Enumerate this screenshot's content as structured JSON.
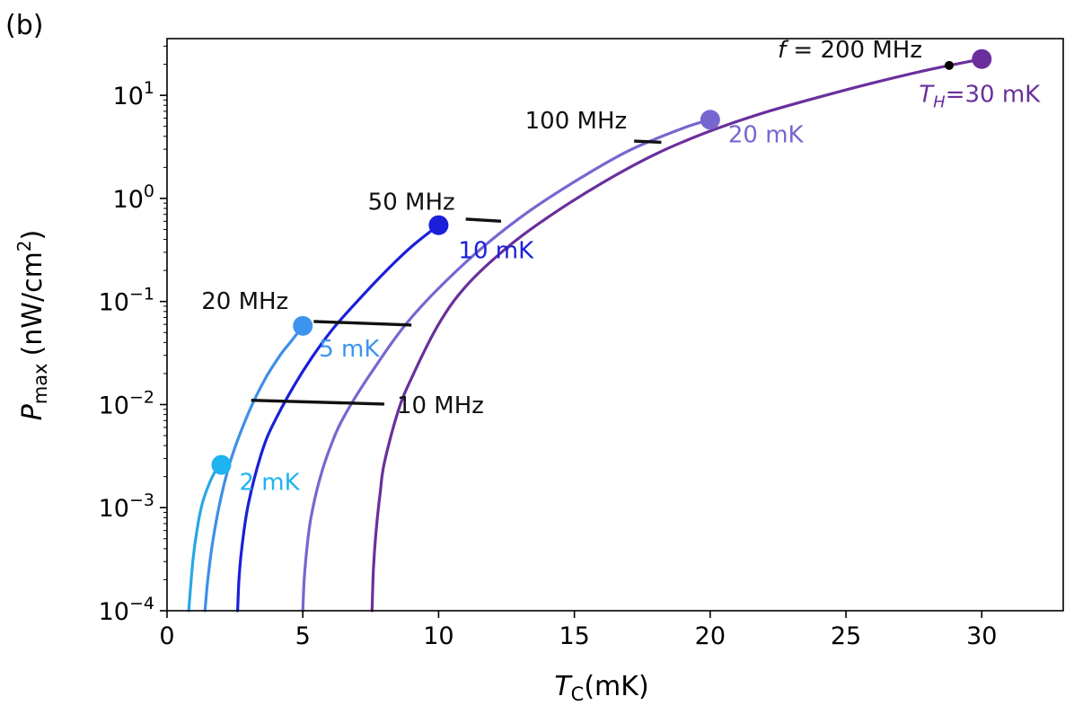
{
  "chart_data": {
    "type": "line",
    "panel_label": "(b)",
    "xlabel": {
      "symbol": "T",
      "subscript": "C",
      "unit": "(mK)"
    },
    "ylabel": {
      "symbol": "P",
      "subscript": "max",
      "unit": "(nW/cm",
      "unit_sup": "2",
      "unit_close": ")"
    },
    "xlim": [
      0,
      33
    ],
    "ylim_log10": [
      -4,
      1.55
    ],
    "yscale": "log",
    "x_ticks": [
      {
        "value": 0,
        "label": "0"
      },
      {
        "value": 5,
        "label": "5"
      },
      {
        "value": 10,
        "label": "10"
      },
      {
        "value": 15,
        "label": "15"
      },
      {
        "value": 20,
        "label": "20"
      },
      {
        "value": 25,
        "label": "25"
      },
      {
        "value": 30,
        "label": "30"
      }
    ],
    "y_ticks": [
      {
        "exp": 1,
        "base": "10",
        "sup": "1"
      },
      {
        "exp": 0,
        "base": "10",
        "sup": "0"
      },
      {
        "exp": -1,
        "base": "10",
        "sup": "−1"
      },
      {
        "exp": -2,
        "base": "10",
        "sup": "−2"
      },
      {
        "exp": -3,
        "base": "10",
        "sup": "−3"
      },
      {
        "exp": -4,
        "base": "10",
        "sup": "−4"
      }
    ],
    "series": [
      {
        "name": "2 mK",
        "T_H": 2,
        "color": "#2aa6e6",
        "x": [
          0.8,
          0.95,
          1.1,
          1.3,
          1.55,
          1.8,
          2.0
        ],
        "y": [
          0.0001,
          0.0003,
          0.0006,
          0.0011,
          0.0017,
          0.0023,
          0.0026
        ]
      },
      {
        "name": "5 mK",
        "T_H": 5,
        "color": "#3d8fe6",
        "x": [
          1.4,
          1.5,
          1.7,
          2.0,
          2.4,
          3.0,
          3.6,
          4.2,
          4.6,
          5.0
        ],
        "y": [
          0.0001,
          0.0002,
          0.0005,
          0.0013,
          0.0032,
          0.0083,
          0.0175,
          0.031,
          0.042,
          0.058
        ]
      },
      {
        "name": "10 mK",
        "T_H": 10,
        "color": "#1a1fd9",
        "x": [
          2.6,
          2.65,
          2.75,
          3.0,
          3.5,
          4.0,
          5.0,
          6.0,
          7.0,
          8.0,
          9.0,
          10.0
        ],
        "y": [
          0.0001,
          0.0002,
          0.0004,
          0.0011,
          0.0035,
          0.0072,
          0.021,
          0.05,
          0.1,
          0.19,
          0.34,
          0.55
        ]
      },
      {
        "name": "20 mK",
        "T_H": 20,
        "color": "#7667d0",
        "x": [
          5.0,
          5.05,
          5.15,
          5.3,
          5.6,
          6.0,
          6.5,
          7.5,
          9.0,
          11.0,
          13.0,
          15.0,
          17.0,
          19.0,
          20.0
        ],
        "y": [
          0.0001,
          0.0002,
          0.0004,
          0.0008,
          0.0018,
          0.0038,
          0.0075,
          0.02,
          0.07,
          0.24,
          0.65,
          1.45,
          2.9,
          4.8,
          5.8
        ]
      },
      {
        "name": "30 mK",
        "T_H": 30,
        "color": "#6a2f9c",
        "x": [
          7.55,
          7.6,
          7.7,
          7.85,
          8.0,
          8.5,
          9.0,
          10.0,
          11.0,
          12.5,
          14.0,
          16.0,
          18.0,
          20.0,
          22.0,
          24.0,
          26.0,
          28.0,
          30.0
        ],
        "y": [
          0.0001,
          0.00025,
          0.0006,
          0.0014,
          0.0027,
          0.0085,
          0.018,
          0.06,
          0.14,
          0.33,
          0.65,
          1.4,
          2.7,
          4.5,
          6.8,
          9.6,
          13.2,
          17.6,
          22.5
        ]
      }
    ],
    "endpoint_markers": [
      {
        "label": "2 mK",
        "x": 2,
        "y": 0.0026,
        "color": "#1fb3f0",
        "label_color": "#1fb3f0"
      },
      {
        "label": "5 mK",
        "x": 5,
        "y": 0.058,
        "color": "#3d94ee",
        "label_color": "#3d94ee"
      },
      {
        "label": "10 mK",
        "x": 10,
        "y": 0.55,
        "color": "#1a1fd9",
        "label_color": "#1a1fd9"
      },
      {
        "label": "20 mK",
        "x": 20,
        "y": 5.8,
        "color": "#7667d0",
        "label_color": "#7667d0"
      },
      {
        "label_prefix_symbol": "T",
        "label_prefix_sub": "H",
        "label": "=30 mK",
        "x": 30,
        "y": 22.5,
        "color": "#6a2f9c",
        "label_color": "#6a2f9c"
      }
    ],
    "frequency_lines": [
      {
        "label": "10 MHz",
        "x1": 3.1,
        "y1": 0.011,
        "x2": 8.0,
        "y2": 0.0101
      },
      {
        "label": "20 MHz",
        "x1": 5.4,
        "y1": 0.064,
        "x2": 9.0,
        "y2": 0.059
      },
      {
        "label": "50 MHz",
        "x1": 11.0,
        "y1": 0.63,
        "x2": 12.3,
        "y2": 0.6
      },
      {
        "label": "100 MHz",
        "x1": 17.2,
        "y1": 3.6,
        "x2": 18.2,
        "y2": 3.5
      },
      {
        "label": "f = 200 MHz",
        "label_symbol": "f",
        "label_rest": " = 200 MHz",
        "x": 28.8,
        "y": 19.5
      }
    ]
  }
}
